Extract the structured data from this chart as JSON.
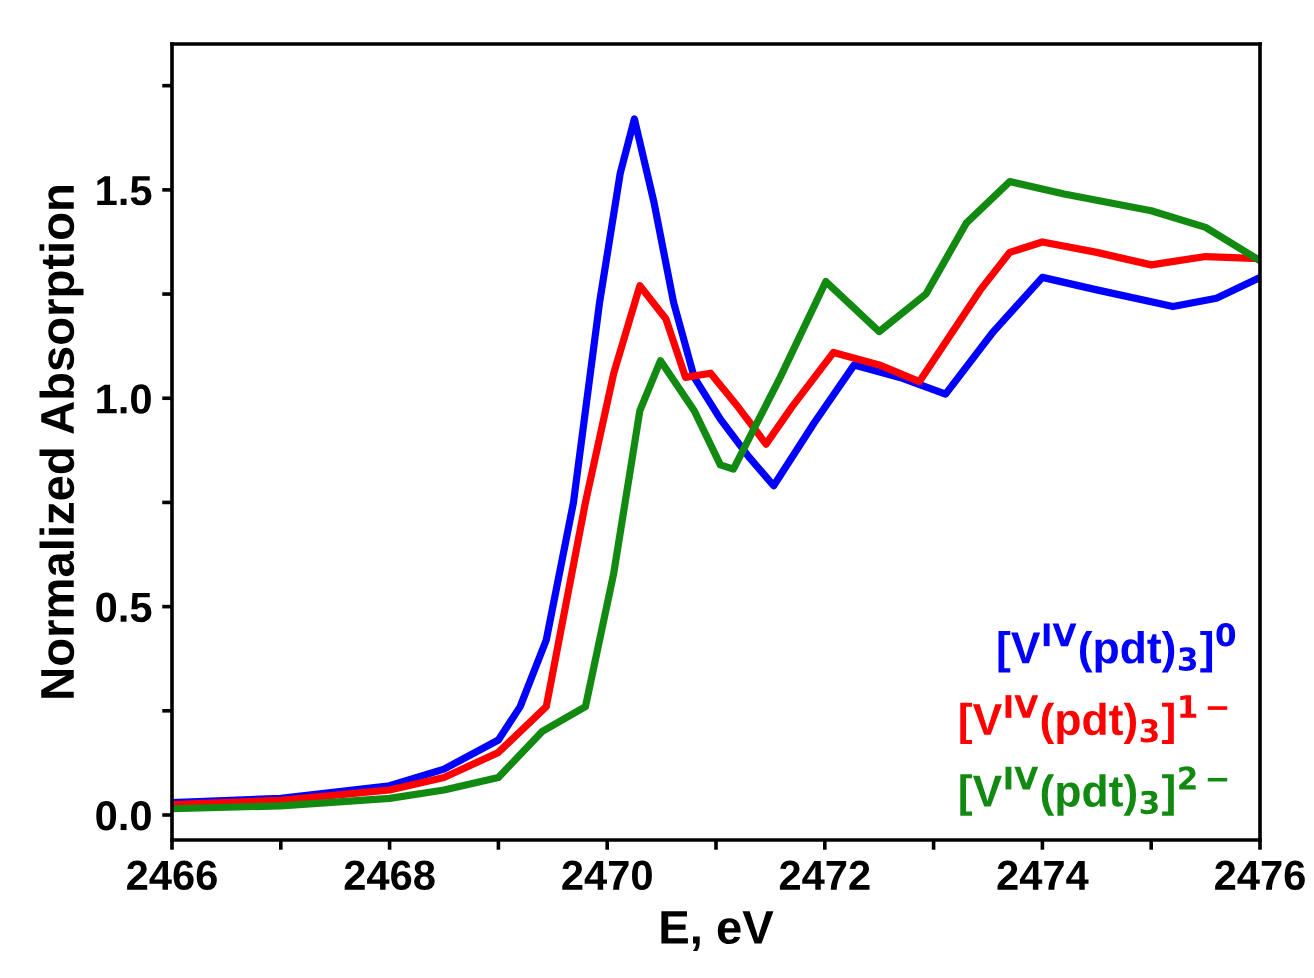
{
  "chart_data": {
    "type": "line",
    "xlabel": "E, eV",
    "ylabel": "Normalized Absorption",
    "xlim": [
      2466,
      2476
    ],
    "ylim": [
      -0.06,
      1.85
    ],
    "xticks": [
      2466,
      {
        "value": 2467,
        "label": null
      },
      2468,
      {
        "value": 2469,
        "label": null
      },
      2470,
      {
        "value": 2471,
        "label": null
      },
      2472,
      {
        "value": 2473,
        "label": null
      },
      2474,
      {
        "value": 2475,
        "label": null
      },
      2476
    ],
    "yticks": [
      {
        "value": 0,
        "label": "0.0"
      },
      {
        "value": 0.25,
        "label": null
      },
      0.5,
      {
        "value": 0.75,
        "label": null
      },
      {
        "value": 1,
        "label": "1.0"
      },
      {
        "value": 1.25,
        "label": null
      },
      1.5,
      {
        "value": 1.75,
        "label": null
      }
    ],
    "grid": false,
    "legend": "bottom right",
    "marker": "none",
    "line_style": "solid",
    "series": [
      {
        "name": "[V$^{IV}$(pdt)$_{3}$]$^{0}$",
        "color": "#0000ff",
        "x": [
          2466,
          2467,
          2468,
          2468.5,
          2469,
          2469.2,
          2469.44,
          2469.69,
          2469.93,
          2470.12,
          2470.25,
          2470.43,
          2470.61,
          2470.8,
          2471.04,
          2471.3,
          2471.53,
          2471.9,
          2472.27,
          2472.69,
          2473.11,
          2473.55,
          2474,
          2474.5,
          2475.2,
          2475.6,
          2476
        ],
        "values": [
          0.03,
          0.04,
          0.07,
          0.11,
          0.18,
          0.26,
          0.42,
          0.75,
          1.23,
          1.54,
          1.67,
          1.47,
          1.23,
          1.05,
          0.95,
          0.86,
          0.79,
          0.94,
          1.08,
          1.05,
          1.01,
          1.16,
          1.29,
          1.26,
          1.22,
          1.24,
          1.29
        ]
      },
      {
        "name": "[V$^{IV}$(pdt)$_{3}$]$^{1−}$",
        "color": "#ff0000",
        "x": [
          2466,
          2467,
          2468,
          2468.5,
          2469,
          2469.2,
          2469.44,
          2469.8,
          2470.06,
          2470.3,
          2470.54,
          2470.72,
          2470.95,
          2471.2,
          2471.46,
          2471.7,
          2472.08,
          2472.5,
          2472.87,
          2473.43,
          2473.7,
          2474,
          2474.5,
          2475,
          2475.5,
          2476
        ],
        "values": [
          0.025,
          0.035,
          0.06,
          0.09,
          0.15,
          0.2,
          0.26,
          0.75,
          1.06,
          1.27,
          1.19,
          1.05,
          1.06,
          0.98,
          0.89,
          0.98,
          1.11,
          1.08,
          1.04,
          1.26,
          1.35,
          1.375,
          1.35,
          1.32,
          1.34,
          1.335
        ]
      },
      {
        "name": "[V$^{IV}$(pdt)$_{3}$]$^{2−}$",
        "color": "#128a12",
        "x": [
          2466,
          2467,
          2468,
          2468.5,
          2469,
          2469.4,
          2469.8,
          2470.06,
          2470.3,
          2470.49,
          2470.8,
          2471.04,
          2471.16,
          2471.59,
          2472.01,
          2472.5,
          2472.93,
          2473.3,
          2473.7,
          2474.2,
          2475,
          2475.5,
          2476
        ],
        "values": [
          0.015,
          0.022,
          0.04,
          0.06,
          0.09,
          0.2,
          0.26,
          0.58,
          0.97,
          1.09,
          0.97,
          0.84,
          0.83,
          1.05,
          1.28,
          1.16,
          1.25,
          1.42,
          1.52,
          1.49,
          1.45,
          1.41,
          1.33
        ]
      }
    ]
  }
}
